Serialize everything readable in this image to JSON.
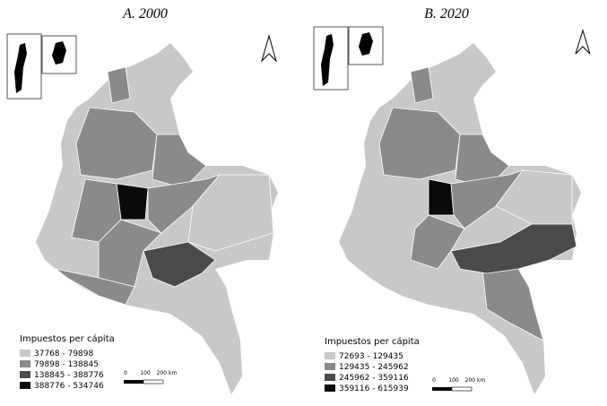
{
  "panels": [
    {
      "title": "A. 2000",
      "legend": {
        "title": "Impuestos per cápita",
        "items": [
          "37768 - 79898",
          "79898 - 138845",
          "138845 - 388776",
          "388776 - 534746"
        ]
      },
      "scale": [
        "0",
        "100",
        "200 km"
      ]
    },
    {
      "title": "B. 2020",
      "legend": {
        "title": "Impuestos per cápita",
        "items": [
          "72693 - 129435",
          "129435 - 245962",
          "245962 - 359116",
          "359116 - 615939"
        ]
      },
      "scale": [
        "0",
        "100",
        "200 km"
      ]
    }
  ]
}
